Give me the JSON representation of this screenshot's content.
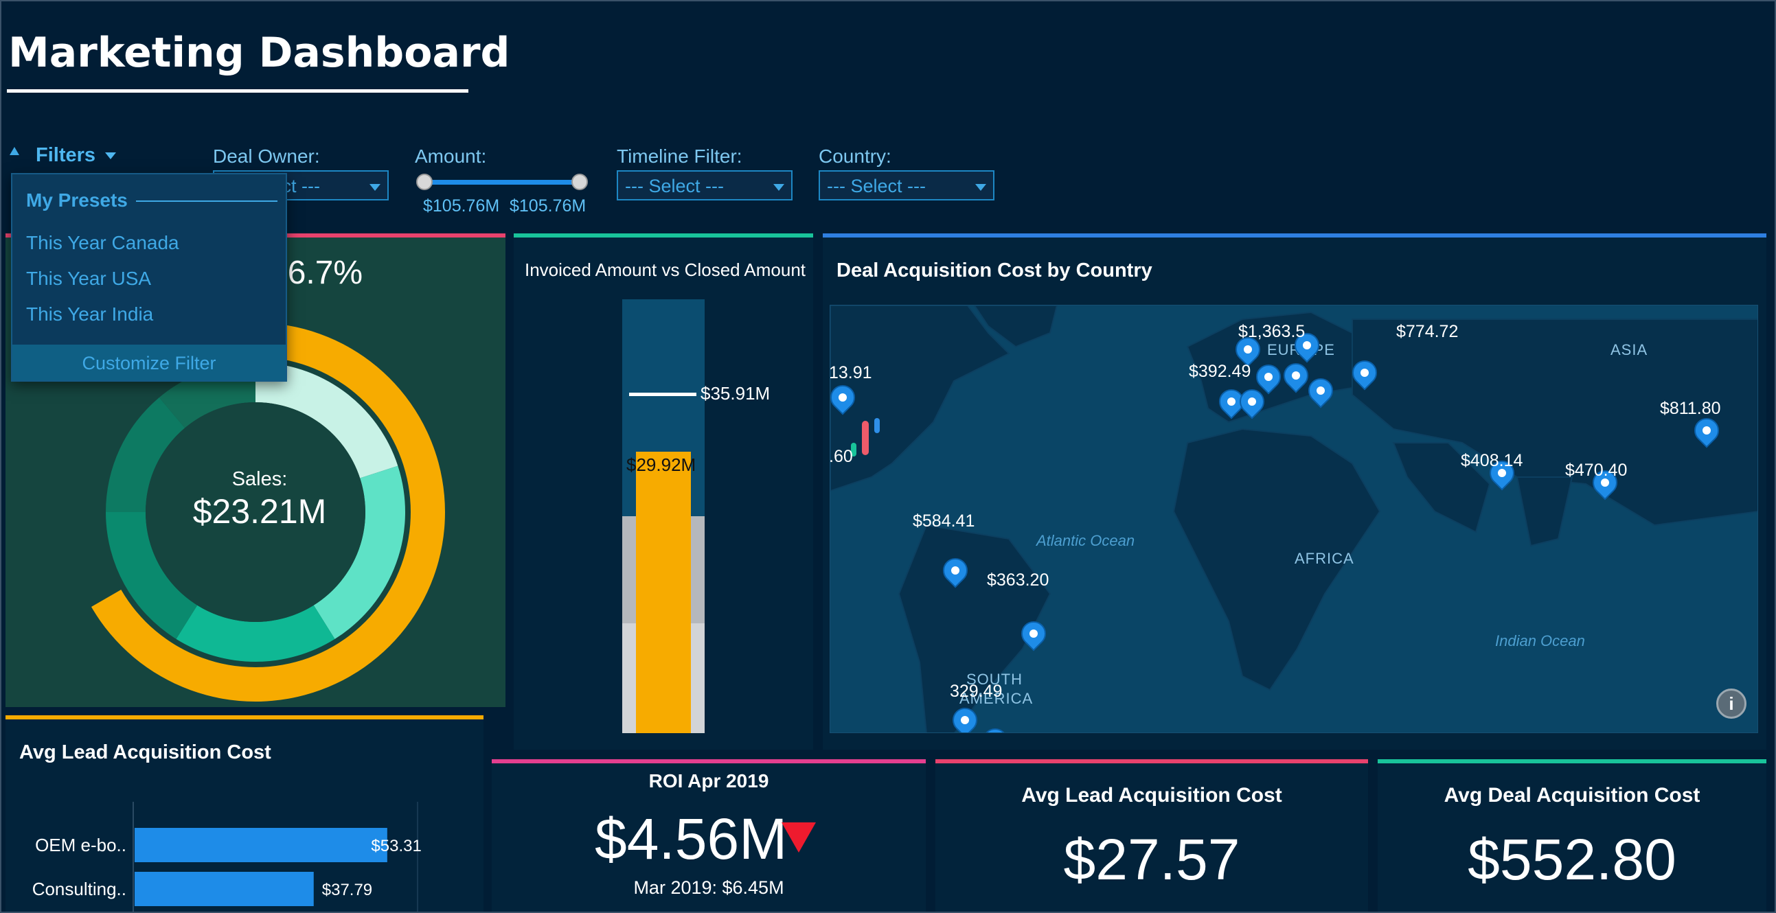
{
  "header": {
    "title": "Marketing Dashboard"
  },
  "filters": {
    "toggle_label": "Filters",
    "deal_owner": {
      "label": "Deal Owner:",
      "value": "--- Select ---"
    },
    "amount": {
      "label": "Amount:",
      "min_label": "$105.76M",
      "max_label": "$105.76M"
    },
    "timeline": {
      "label": "Timeline Filter:",
      "value": "--- Select ---"
    },
    "country": {
      "label": "Country:",
      "value": "--- Select ---"
    }
  },
  "presets_menu": {
    "heading": "My Presets",
    "items": [
      "This Year Canada",
      "This Year USA",
      "This Year India"
    ],
    "customize_label": "Customize Filter"
  },
  "sales_donut": {
    "percent_label": "66.7%",
    "center_label": "Sales:",
    "center_value": "$23.21M",
    "progress_fraction": 0.667
  },
  "bullet_chart": {
    "title": "Invoiced Amount vs Closed Amount",
    "target_label": "$35.91M",
    "bar_label": "$29.92M"
  },
  "map": {
    "title": "Deal Acquisition Cost by Country",
    "continents": [
      "ASIA",
      "AFRICA",
      "SOUTH",
      "AMERICA",
      "EUROPE"
    ],
    "oceans": [
      "Atlantic Ocean",
      "Indian Ocean"
    ],
    "markers": [
      "$1,363.5",
      "$774.72",
      "$392.49",
      "13.91",
      ".60",
      "$811.80",
      "$408.14",
      "$470.40",
      "$584.41",
      "$363.20",
      "329.49"
    ]
  },
  "lead_cost_chart": {
    "title": "Avg Lead Acquisition Cost"
  },
  "chart_data": {
    "type": "bar",
    "orientation": "horizontal",
    "title": "Avg Lead Acquisition Cost",
    "categories": [
      "OEM e-bo..",
      "Consulting.."
    ],
    "values": [
      53.31,
      37.79
    ],
    "value_labels": [
      "$53.31",
      "$37.79"
    ],
    "xlim": [
      0,
      60
    ]
  },
  "roi_kpi": {
    "title": "ROI Apr 2019",
    "value": "$4.56M",
    "compare": "Mar 2019: $6.45M",
    "trend": "down"
  },
  "lead_kpi": {
    "title": "Avg Lead Acquisition Cost",
    "value": "$27.57"
  },
  "deal_kpi": {
    "title": "Avg Deal Acquisition Cost",
    "value": "$552.80"
  },
  "colors": {
    "accent": "#f7ab00",
    "pink": "#e8426d",
    "teal": "#19c39a",
    "blue": "#2f7fe0",
    "bar": "#1e8ce8",
    "down": "#ee1b2e"
  }
}
